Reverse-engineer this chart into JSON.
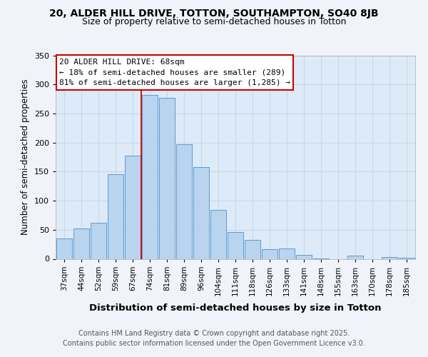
{
  "title1": "20, ALDER HILL DRIVE, TOTTON, SOUTHAMPTON, SO40 8JB",
  "title2": "Size of property relative to semi-detached houses in Totton",
  "xlabel": "Distribution of semi-detached houses by size in Totton",
  "ylabel": "Number of semi-detached properties",
  "bins": [
    "37sqm",
    "44sqm",
    "52sqm",
    "59sqm",
    "67sqm",
    "74sqm",
    "81sqm",
    "89sqm",
    "96sqm",
    "104sqm",
    "111sqm",
    "118sqm",
    "126sqm",
    "133sqm",
    "141sqm",
    "148sqm",
    "155sqm",
    "163sqm",
    "170sqm",
    "178sqm",
    "185sqm"
  ],
  "values": [
    35,
    52,
    62,
    145,
    178,
    282,
    277,
    197,
    158,
    84,
    46,
    33,
    16,
    18,
    7,
    1,
    0,
    5,
    0,
    3,
    2
  ],
  "bar_color": "#b8d4ee",
  "bar_edge_color": "#5090c8",
  "property_line_bin": 4,
  "annotation_title": "20 ALDER HILL DRIVE: 68sqm",
  "annotation_line1": "← 18% of semi-detached houses are smaller (289)",
  "annotation_line2": "81% of semi-detached houses are larger (1,285) →",
  "ann_box_facecolor": "#ffffff",
  "ann_box_edgecolor": "#cc0000",
  "red_line_color": "#cc0000",
  "ylim": [
    0,
    350
  ],
  "yticks": [
    0,
    50,
    100,
    150,
    200,
    250,
    300,
    350
  ],
  "bg_color": "#f0f4fa",
  "plot_bg_color": "#ddeaf8",
  "footer1": "Contains HM Land Registry data © Crown copyright and database right 2025.",
  "footer2": "Contains public sector information licensed under the Open Government Licence v3.0."
}
